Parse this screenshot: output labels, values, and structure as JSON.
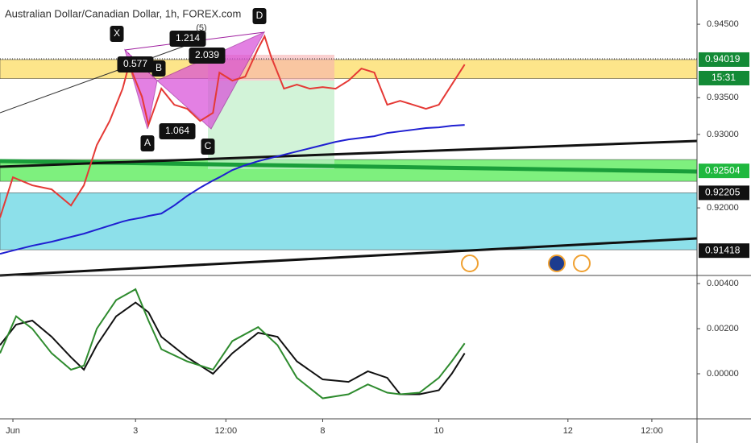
{
  "chart_data": [
    {
      "type": "line",
      "title": "Australian Dollar/Canadian Dollar, 1h, FOREX.com",
      "x": [
        0,
        2,
        5,
        8,
        11,
        13,
        15,
        17,
        19,
        20,
        22,
        23,
        25,
        27,
        29,
        31,
        33,
        34,
        36,
        38,
        40,
        41,
        42,
        44,
        46,
        48,
        50,
        52,
        54,
        56,
        58,
        60,
        62,
        64,
        66,
        68,
        70,
        72
      ],
      "series": [
        {
          "color": "#e53935",
          "values": [
            0.91868,
            0.92417,
            0.92307,
            0.92252,
            0.92033,
            0.92307,
            0.92855,
            0.93184,
            0.93623,
            0.93952,
            0.93513,
            0.93129,
            0.93623,
            0.93404,
            0.93349,
            0.93184,
            0.93294,
            0.93842,
            0.93732,
            0.93787,
            0.94171,
            0.94336,
            0.94061,
            0.93623,
            0.93678,
            0.93623,
            0.93645,
            0.93623,
            0.93732,
            0.93897,
            0.93842,
            0.93404,
            0.93458,
            0.93404,
            0.93349,
            0.93404,
            0.93678,
            0.93952
          ]
        },
        {
          "color": "#1f1fd1",
          "values": [
            0.91375,
            0.91419,
            0.91485,
            0.91539,
            0.91605,
            0.91649,
            0.91704,
            0.91759,
            0.91814,
            0.91836,
            0.91868,
            0.9189,
            0.91923,
            0.92033,
            0.92164,
            0.92274,
            0.92373,
            0.92417,
            0.92515,
            0.92581,
            0.92636,
            0.92658,
            0.9268,
            0.92724,
            0.92768,
            0.92811,
            0.92855,
            0.92899,
            0.92932,
            0.92954,
            0.92976,
            0.9302,
            0.93042,
            0.93064,
            0.93086,
            0.93096,
            0.93118,
            0.93129
          ]
        }
      ],
      "xlim": [
        0,
        108
      ],
      "xticks": [
        {
          "value": 2,
          "label": "Jun"
        },
        {
          "value": 21,
          "label": "3"
        },
        {
          "value": 35,
          "label": "12:00"
        },
        {
          "value": 50,
          "label": "8"
        },
        {
          "value": 68,
          "label": "10"
        },
        {
          "value": 88,
          "label": "12"
        },
        {
          "value": 101,
          "label": "12:00"
        }
      ],
      "ylim": [
        0.9108,
        0.9483
      ],
      "yticks": [
        {
          "value": 0.945,
          "label": "0.94500"
        },
        {
          "value": 0.935,
          "label": "0.93500"
        },
        {
          "value": 0.93,
          "label": "0.93000"
        },
        {
          "value": 0.92,
          "label": "0.92000"
        }
      ],
      "zones": [
        {
          "from": 0.94019,
          "to": 0.9376,
          "color": "#fde58a"
        },
        {
          "from": 0.92658,
          "to": 0.92362,
          "color": "#7ef07e"
        },
        {
          "from": 0.92205,
          "to": 0.9143,
          "color": "#8de0ea"
        }
      ],
      "price_labels": [
        {
          "value": 0.94019,
          "label": "0.94019",
          "color": "#138a36"
        },
        {
          "value": 0.92504,
          "label": "0.92504",
          "color": "#1fb83e"
        },
        {
          "value": 0.92205,
          "label": "0.92205",
          "color": "#111111"
        },
        {
          "value": 0.91418,
          "label": "0.91418",
          "color": "#111111"
        }
      ],
      "countdown": "15:31",
      "annotations": [
        "X",
        "A",
        "B",
        "C",
        "D",
        "0.577",
        "1.214",
        "2.039",
        "1.064",
        "(5)"
      ]
    },
    {
      "type": "line",
      "x": [
        0,
        2.5,
        5,
        8,
        11,
        13,
        15,
        18,
        21,
        23,
        25,
        29,
        33,
        36,
        40,
        43,
        46,
        50,
        54,
        57,
        60,
        62,
        65,
        68,
        70,
        72
      ],
      "series": [
        {
          "color": "#111111",
          "values": [
            0.00127,
            0.00218,
            0.00236,
            0.00164,
            0.00073,
            0.00018,
            0.00127,
            0.00255,
            0.00316,
            0.00273,
            0.00164,
            0.00073,
            0,
            0.00091,
            0.00182,
            0.00164,
            0.00055,
            -0.00025,
            -0.00036,
            0.00011,
            -0.00018,
            -0.00091,
            -0.00091,
            -0.00073,
            0,
            0.00091
          ]
        },
        {
          "color": "#2e8b2e",
          "values": [
            0.00091,
            0.00255,
            0.002,
            0.00091,
            0.00018,
            0.00036,
            0.002,
            0.00327,
            0.00375,
            0.00236,
            0.00109,
            0.00055,
            0.00018,
            0.00145,
            0.00207,
            0.00127,
            -0.00018,
            -0.00109,
            -0.00091,
            -0.00047,
            -0.00084,
            -0.00091,
            -0.00084,
            -0.00018,
            0.00055,
            0.00135
          ]
        }
      ],
      "xlim": [
        0,
        108
      ],
      "ylim": [
        -0.002,
        0.00436
      ],
      "yticks": [
        {
          "value": 0.004,
          "label": "0.00400"
        },
        {
          "value": 0.002,
          "label": "0.00200"
        },
        {
          "value": 0,
          "label": "0.00000"
        }
      ]
    }
  ]
}
